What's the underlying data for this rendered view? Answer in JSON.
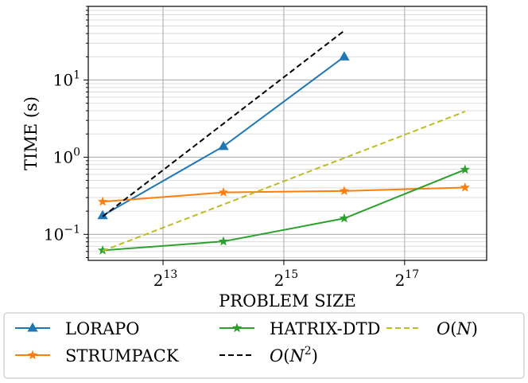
{
  "chart_data": {
    "type": "line",
    "title": "",
    "xlabel": "PROBLEM SIZE",
    "ylabel": "TIME (s)",
    "x_scale": "log2",
    "y_scale": "log10",
    "xlim": [
      3473,
      336000
    ],
    "ylim": [
      0.046,
      90
    ],
    "x_ticks": [
      {
        "value": 8192,
        "base": "2",
        "exp": "13"
      },
      {
        "value": 32768,
        "base": "2",
        "exp": "15"
      },
      {
        "value": 131072,
        "base": "2",
        "exp": "17"
      }
    ],
    "y_ticks": [
      {
        "value": 0.1,
        "base": "10",
        "exp": "−1"
      },
      {
        "value": 1,
        "base": "10",
        "exp": "0"
      },
      {
        "value": 10,
        "base": "10",
        "exp": "1"
      }
    ],
    "grid": true,
    "legend_position": "below",
    "series": [
      {
        "name": "LORAPO",
        "color": "#1f77b4",
        "style": "solid",
        "marker": "triangle",
        "x": [
          4096,
          16384,
          65536
        ],
        "y": [
          0.175,
          1.38,
          20
        ]
      },
      {
        "name": "STRUMPACK",
        "color": "#ff7f0e",
        "style": "solid",
        "marker": "star",
        "x": [
          4096,
          16384,
          65536,
          262144
        ],
        "y": [
          0.265,
          0.35,
          0.365,
          0.405
        ]
      },
      {
        "name": "HATRIX-DTD",
        "color": "#2ca02c",
        "style": "solid",
        "marker": "star",
        "x": [
          4096,
          16384,
          65536,
          262144
        ],
        "y": [
          0.062,
          0.081,
          0.161,
          0.69
        ]
      },
      {
        "name": "O(N²)",
        "color": "#000000",
        "style": "dashed",
        "marker": "none",
        "x": [
          4096,
          65536
        ],
        "y": [
          0.17,
          43.5
        ]
      },
      {
        "name": "O(N)",
        "color": "#bcbd22",
        "style": "dashed",
        "marker": "none",
        "x": [
          4096,
          262144
        ],
        "y": [
          0.061,
          3.9
        ]
      }
    ],
    "legend": [
      {
        "label_main": "LORAPO",
        "label_italic": "",
        "label_paren": "",
        "label_sup": ""
      },
      {
        "label_main": "STRUMPACK",
        "label_italic": "",
        "label_paren": "",
        "label_sup": ""
      },
      {
        "label_main": "HATRIX-DTD",
        "label_italic": "",
        "label_paren": "",
        "label_sup": ""
      },
      {
        "label_main": "",
        "label_italic": "O",
        "label_paren": "N",
        "label_sup": "2"
      },
      {
        "label_main": "",
        "label_italic": "O",
        "label_paren": "N",
        "label_sup": ""
      }
    ]
  }
}
